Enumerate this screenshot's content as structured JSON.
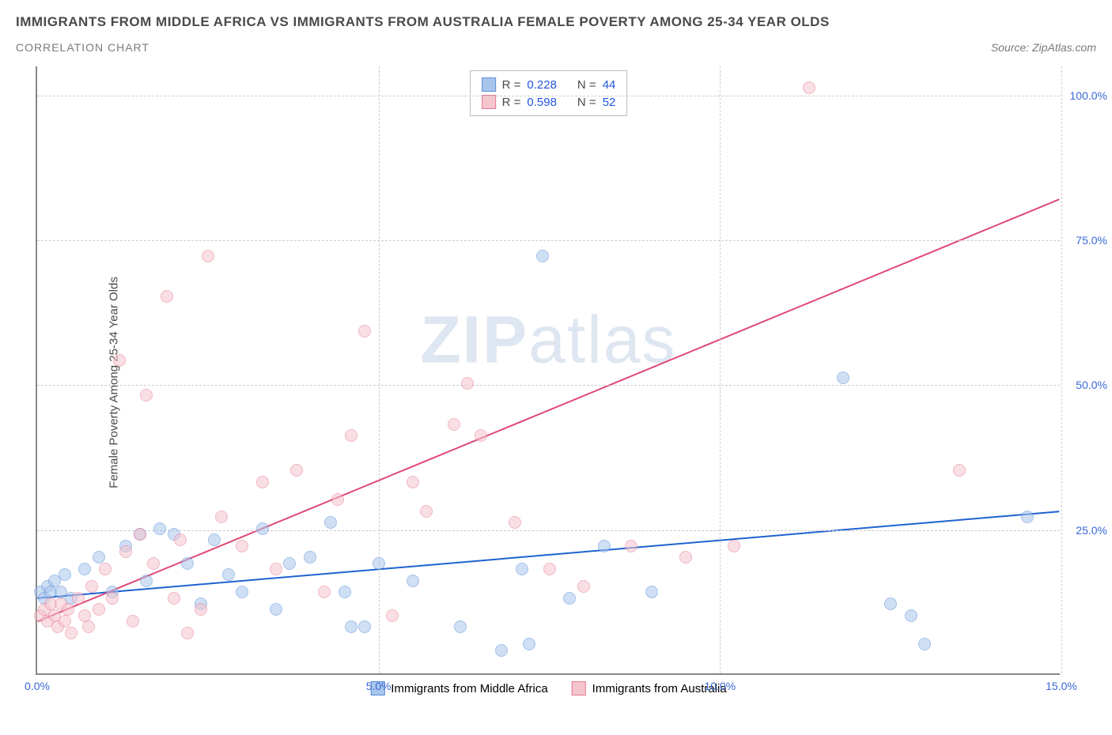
{
  "header": {
    "title": "IMMIGRANTS FROM MIDDLE AFRICA VS IMMIGRANTS FROM AUSTRALIA FEMALE POVERTY AMONG 25-34 YEAR OLDS",
    "subtitle": "CORRELATION CHART",
    "source": "Source: ZipAtlas.com"
  },
  "watermark": "ZIPatlas",
  "chart": {
    "type": "scatter",
    "y_axis_title": "Female Poverty Among 25-34 Year Olds",
    "xlim": [
      0,
      15
    ],
    "ylim": [
      0,
      105
    ],
    "x_ticks": [
      0,
      5,
      10,
      15
    ],
    "x_tick_labels": [
      "0.0%",
      "5.0%",
      "10.0%",
      "15.0%"
    ],
    "y_ticks": [
      25,
      50,
      75,
      100
    ],
    "y_tick_labels": [
      "25.0%",
      "50.0%",
      "75.0%",
      "100.0%"
    ],
    "grid_color": "#cccccc",
    "background_color": "#ffffff",
    "axis_color": "#888888",
    "tick_label_color": "#3968d8",
    "point_radius": 8,
    "point_opacity": 0.55,
    "series": [
      {
        "name": "Immigrants from Middle Africa",
        "color_fill": "#a9c5ec",
        "color_stroke": "#5a8fd8",
        "trend_line_color": "#1e62d0",
        "trend_line_width": 2,
        "R": "0.228",
        "N": "44",
        "trend": {
          "x1": 0,
          "y1": 13,
          "x2": 15,
          "y2": 28
        },
        "points": [
          [
            0.05,
            14
          ],
          [
            0.1,
            13
          ],
          [
            0.15,
            15
          ],
          [
            0.2,
            14
          ],
          [
            0.25,
            16
          ],
          [
            0.35,
            14
          ],
          [
            0.4,
            17
          ],
          [
            0.5,
            13
          ],
          [
            0.7,
            18
          ],
          [
            0.9,
            20
          ],
          [
            1.1,
            14
          ],
          [
            1.3,
            22
          ],
          [
            1.5,
            24
          ],
          [
            1.6,
            16
          ],
          [
            1.8,
            25
          ],
          [
            2.0,
            24
          ],
          [
            2.2,
            19
          ],
          [
            2.4,
            12
          ],
          [
            2.6,
            23
          ],
          [
            2.8,
            17
          ],
          [
            3.0,
            14
          ],
          [
            3.3,
            25
          ],
          [
            3.5,
            11
          ],
          [
            3.7,
            19
          ],
          [
            4.0,
            20
          ],
          [
            4.3,
            26
          ],
          [
            4.5,
            14
          ],
          [
            4.6,
            8
          ],
          [
            4.8,
            8
          ],
          [
            5.0,
            19
          ],
          [
            5.5,
            16
          ],
          [
            6.2,
            8
          ],
          [
            6.8,
            4
          ],
          [
            7.1,
            18
          ],
          [
            7.2,
            5
          ],
          [
            7.4,
            72
          ],
          [
            7.8,
            13
          ],
          [
            8.3,
            22
          ],
          [
            9.0,
            14
          ],
          [
            11.8,
            51
          ],
          [
            12.5,
            12
          ],
          [
            12.8,
            10
          ],
          [
            13.0,
            5
          ],
          [
            14.5,
            27
          ]
        ]
      },
      {
        "name": "Immigrants from Australia",
        "color_fill": "#f5c5ce",
        "color_stroke": "#e77a96",
        "trend_line_color": "#e04a77",
        "trend_line_width": 2,
        "R": "0.598",
        "N": "52",
        "trend": {
          "x1": 0,
          "y1": 9,
          "x2": 15,
          "y2": 82
        },
        "points": [
          [
            0.05,
            10
          ],
          [
            0.1,
            11
          ],
          [
            0.15,
            9
          ],
          [
            0.2,
            12
          ],
          [
            0.25,
            10
          ],
          [
            0.3,
            8
          ],
          [
            0.35,
            12
          ],
          [
            0.4,
            9
          ],
          [
            0.45,
            11
          ],
          [
            0.5,
            7
          ],
          [
            0.6,
            13
          ],
          [
            0.7,
            10
          ],
          [
            0.75,
            8
          ],
          [
            0.8,
            15
          ],
          [
            0.9,
            11
          ],
          [
            1.0,
            18
          ],
          [
            1.1,
            13
          ],
          [
            1.2,
            54
          ],
          [
            1.3,
            21
          ],
          [
            1.4,
            9
          ],
          [
            1.5,
            24
          ],
          [
            1.6,
            48
          ],
          [
            1.7,
            19
          ],
          [
            1.9,
            65
          ],
          [
            2.0,
            13
          ],
          [
            2.1,
            23
          ],
          [
            2.2,
            7
          ],
          [
            2.4,
            11
          ],
          [
            2.5,
            72
          ],
          [
            2.7,
            27
          ],
          [
            3.0,
            22
          ],
          [
            3.3,
            33
          ],
          [
            3.5,
            18
          ],
          [
            3.8,
            35
          ],
          [
            4.2,
            14
          ],
          [
            4.4,
            30
          ],
          [
            4.6,
            41
          ],
          [
            4.8,
            59
          ],
          [
            5.2,
            10
          ],
          [
            5.5,
            33
          ],
          [
            5.7,
            28
          ],
          [
            6.1,
            43
          ],
          [
            6.3,
            50
          ],
          [
            6.5,
            41
          ],
          [
            7.0,
            26
          ],
          [
            7.5,
            18
          ],
          [
            8.0,
            15
          ],
          [
            8.7,
            22
          ],
          [
            9.5,
            20
          ],
          [
            10.2,
            22
          ],
          [
            11.3,
            101
          ],
          [
            13.5,
            35
          ]
        ]
      }
    ],
    "legend_top": {
      "r_label": "R =",
      "n_label": "N ="
    }
  }
}
